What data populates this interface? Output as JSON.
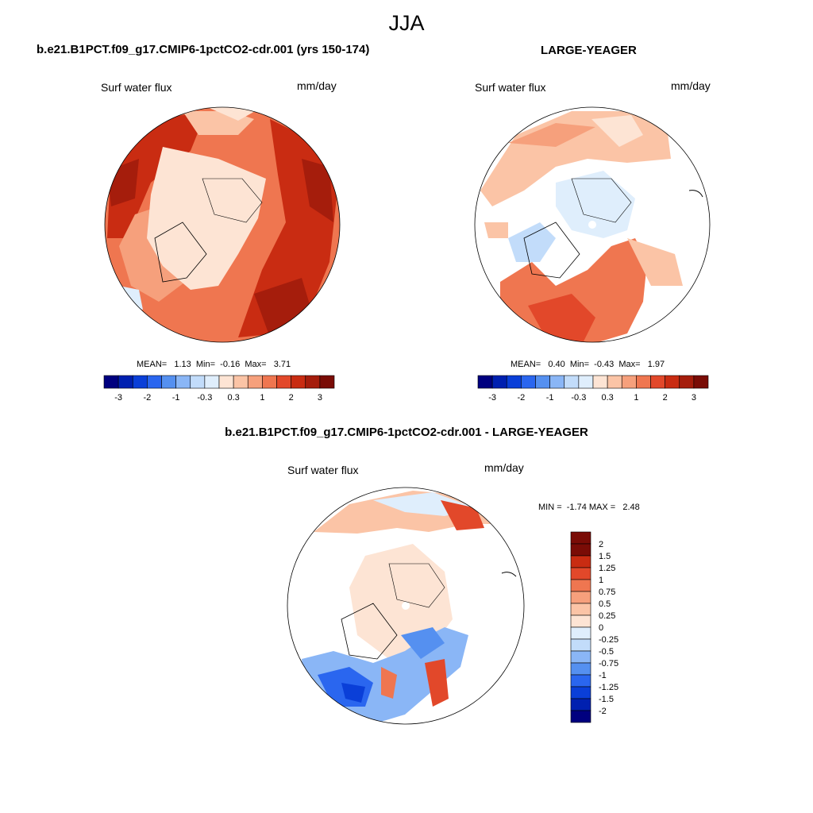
{
  "figure": {
    "title": "JJA",
    "panel_left_title": "b.e21.B1PCT.f09_g17.CMIP6-1pctCO2-cdr.001 (yrs 150-174)",
    "panel_right_title": "LARGE-YEAGER",
    "panel_diff_title": "b.e21.B1PCT.f09_g17.CMIP6-1pctCO2-cdr.001 - LARGE-YEAGER",
    "variable_label": "Surf water flux",
    "units_label": "mm/day"
  },
  "colors": {
    "levels_main": [
      "#00007f",
      "#0020b0",
      "#0a3fd8",
      "#2a66ef",
      "#5590f0",
      "#8ab6f6",
      "#c2dcfa",
      "#dfeefc",
      "#fde4d4",
      "#fbc4a6",
      "#f6a07c",
      "#ef7650",
      "#e2482a",
      "#c92c12",
      "#a51d0c",
      "#7a0c06"
    ],
    "levels_diff": [
      "#00007f",
      "#0020b0",
      "#0a3fd8",
      "#2a66ef",
      "#5590f0",
      "#8ab6f6",
      "#c2dcfa",
      "#dfeefc",
      "#fde4d4",
      "#fbc4a6",
      "#f6a07c",
      "#ef7650",
      "#e2482a",
      "#c92c12",
      "#7a0c06"
    ]
  },
  "chart_data": [
    {
      "type": "heatmap",
      "projection": "north-polar-stereographic",
      "title": "b.e21.B1PCT.f09_g17.CMIP6-1pctCO2-cdr.001 (yrs 150-174)",
      "left_label": "Surf water flux",
      "right_label": "mm/day",
      "stats": {
        "mean": "1.13",
        "min": "-0.16",
        "max": "3.71"
      },
      "stats_text": "MEAN=   1.13  Min=  -0.16  Max=   3.71",
      "colorbar": {
        "orientation": "horizontal",
        "tick_labels": [
          "-3",
          "-2",
          "-1",
          "-0.3",
          "0.3",
          "1",
          "2",
          "3"
        ]
      }
    },
    {
      "type": "heatmap",
      "projection": "north-polar-stereographic",
      "title": "LARGE-YEAGER",
      "left_label": "Surf water flux",
      "right_label": "mm/day",
      "stats": {
        "mean": "0.40",
        "min": "-0.43",
        "max": "1.97"
      },
      "stats_text": "MEAN=   0.40  Min=  -0.43  Max=   1.97",
      "colorbar": {
        "orientation": "horizontal",
        "tick_labels": [
          "-3",
          "-2",
          "-1",
          "-0.3",
          "0.3",
          "1",
          "2",
          "3"
        ]
      }
    },
    {
      "type": "heatmap",
      "projection": "north-polar-stereographic",
      "title": "b.e21.B1PCT.f09_g17.CMIP6-1pctCO2-cdr.001 - LARGE-YEAGER",
      "left_label": "Surf water flux",
      "right_label": "mm/day",
      "stats": {
        "min": "-1.74",
        "max": "2.48"
      },
      "stats_text": "MIN =  -1.74 MAX =   2.48",
      "colorbar": {
        "orientation": "vertical",
        "tick_labels": [
          "2",
          "1.5",
          "1.25",
          "1",
          "0.75",
          "0.5",
          "0.25",
          "0",
          "-0.25",
          "-0.5",
          "-0.75",
          "-1",
          "-1.25",
          "-1.5",
          "-2"
        ]
      }
    }
  ]
}
